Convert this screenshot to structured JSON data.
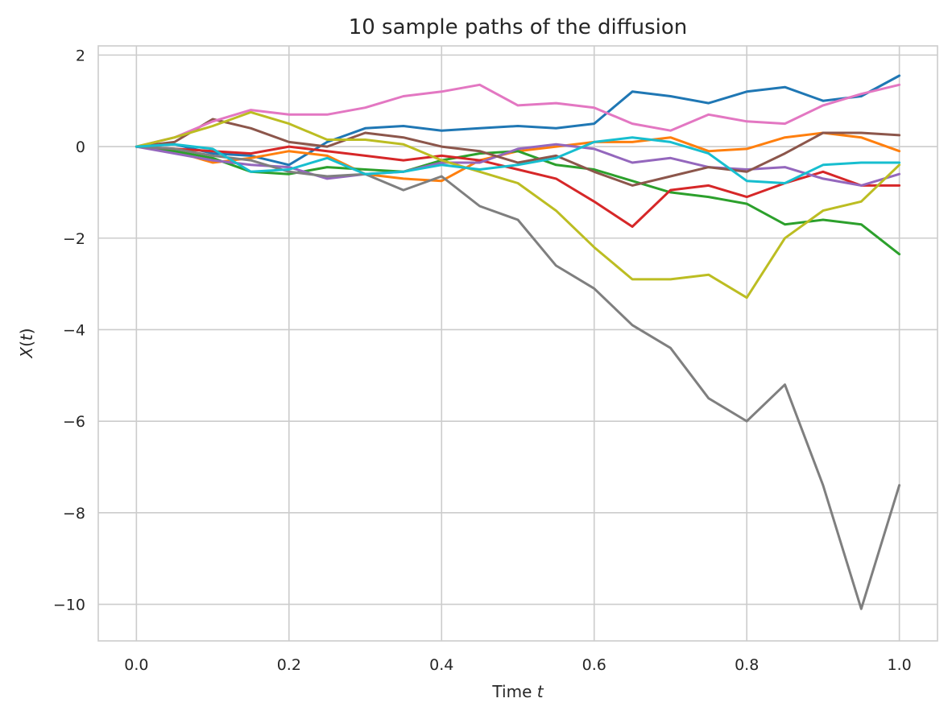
{
  "chart_data": {
    "type": "line",
    "title": "10 sample paths of the diffusion",
    "xlabel": "Time",
    "xlabel_var": "t",
    "ylabel_var": "X",
    "ylabel_arg": "t",
    "xlim": [
      -0.05,
      1.05
    ],
    "ylim": [
      -10.8,
      2.2
    ],
    "xticks": [
      0.0,
      0.2,
      0.4,
      0.6,
      0.8,
      1.0
    ],
    "xtick_labels": [
      "0.0",
      "0.2",
      "0.4",
      "0.6",
      "0.8",
      "1.0"
    ],
    "yticks": [
      2,
      0,
      -2,
      -4,
      -6,
      -8,
      -10
    ],
    "ytick_labels": [
      "2",
      "0",
      "−2",
      "−4",
      "−6",
      "−8",
      "−10"
    ],
    "grid": true,
    "legend": "none",
    "x": [
      0.0,
      0.05,
      0.1,
      0.15,
      0.2,
      0.25,
      0.3,
      0.35,
      0.4,
      0.45,
      0.5,
      0.55,
      0.6,
      0.65,
      0.7,
      0.75,
      0.8,
      0.85,
      0.9,
      0.95,
      1.0
    ],
    "series": [
      {
        "color": "#1f77b4",
        "values": [
          0,
          0.05,
          -0.15,
          -0.2,
          -0.4,
          0.1,
          0.4,
          0.45,
          0.35,
          0.4,
          0.45,
          0.4,
          0.5,
          1.2,
          1.1,
          0.95,
          1.2,
          1.3,
          1.0,
          1.1,
          1.55
        ]
      },
      {
        "color": "#ff7f0e",
        "values": [
          0,
          -0.1,
          -0.35,
          -0.25,
          -0.1,
          -0.2,
          -0.6,
          -0.7,
          -0.75,
          -0.3,
          -0.1,
          0.0,
          0.1,
          0.1,
          0.2,
          -0.1,
          -0.05,
          0.2,
          0.3,
          0.2,
          -0.1
        ]
      },
      {
        "color": "#2ca02c",
        "values": [
          0,
          -0.1,
          -0.25,
          -0.55,
          -0.6,
          -0.45,
          -0.5,
          -0.55,
          -0.3,
          -0.15,
          -0.1,
          -0.4,
          -0.5,
          -0.75,
          -1.0,
          -1.1,
          -1.25,
          -1.7,
          -1.6,
          -1.7,
          -2.35
        ]
      },
      {
        "color": "#d62728",
        "values": [
          0,
          -0.05,
          -0.1,
          -0.15,
          0.0,
          -0.1,
          -0.2,
          -0.3,
          -0.2,
          -0.3,
          -0.5,
          -0.7,
          -1.2,
          -1.75,
          -0.95,
          -0.85,
          -1.1,
          -0.8,
          -0.55,
          -0.85,
          -0.85
        ]
      },
      {
        "color": "#9467bd",
        "values": [
          0,
          -0.15,
          -0.3,
          -0.4,
          -0.45,
          -0.7,
          -0.6,
          -0.55,
          -0.35,
          -0.35,
          -0.05,
          0.05,
          -0.05,
          -0.35,
          -0.25,
          -0.45,
          -0.5,
          -0.45,
          -0.7,
          -0.85,
          -0.6
        ]
      },
      {
        "color": "#8c564b",
        "values": [
          0,
          0.1,
          0.6,
          0.4,
          0.1,
          0.0,
          0.3,
          0.2,
          0.0,
          -0.1,
          -0.35,
          -0.2,
          -0.55,
          -0.85,
          -0.65,
          -0.45,
          -0.55,
          -0.15,
          0.3,
          0.3,
          0.25
        ]
      },
      {
        "color": "#e377c2",
        "values": [
          0,
          0.2,
          0.55,
          0.8,
          0.7,
          0.7,
          0.85,
          1.1,
          1.2,
          1.35,
          0.9,
          0.95,
          0.85,
          0.5,
          0.35,
          0.7,
          0.55,
          0.5,
          0.9,
          1.15,
          1.35
        ]
      },
      {
        "color": "#7f7f7f",
        "values": [
          0,
          -0.05,
          -0.2,
          -0.3,
          -0.55,
          -0.65,
          -0.6,
          -0.95,
          -0.65,
          -1.3,
          -1.6,
          -2.6,
          -3.1,
          -3.9,
          -4.4,
          -5.5,
          -6.0,
          -5.2,
          -7.4,
          -10.1,
          -7.4
        ]
      },
      {
        "color": "#bcbd22",
        "values": [
          0,
          0.2,
          0.45,
          0.75,
          0.5,
          0.15,
          0.15,
          0.05,
          -0.3,
          -0.55,
          -0.8,
          -1.4,
          -2.2,
          -2.9,
          -2.9,
          -2.8,
          -3.3,
          -2.0,
          -1.4,
          -1.2,
          -0.4
        ]
      },
      {
        "color": "#17becf",
        "values": [
          0,
          0.05,
          -0.05,
          -0.55,
          -0.5,
          -0.25,
          -0.6,
          -0.55,
          -0.4,
          -0.5,
          -0.4,
          -0.25,
          0.1,
          0.2,
          0.1,
          -0.15,
          -0.75,
          -0.8,
          -0.4,
          -0.35,
          -0.35
        ]
      }
    ]
  }
}
